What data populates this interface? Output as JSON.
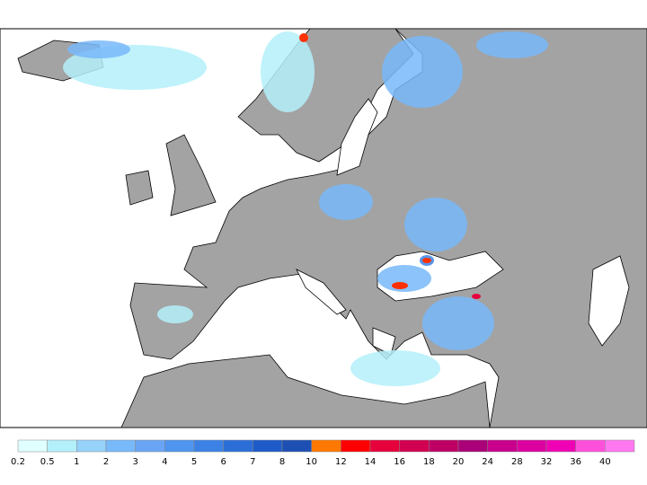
{
  "legend": {
    "levels": [
      0.2,
      0.5,
      1,
      2,
      3,
      4,
      5,
      6,
      7,
      8,
      10,
      12,
      14,
      16,
      18,
      20,
      24,
      28,
      32,
      36,
      40
    ],
    "colors": [
      "#e0ffff",
      "#b4f0fa",
      "#96d2fa",
      "#78b9fa",
      "#6aa5f5",
      "#5096f0",
      "#3c82e6",
      "#2c6ed8",
      "#1e5ac8",
      "#1e50b4",
      "#ff7800",
      "#ff0000",
      "#e6003c",
      "#d20050",
      "#be0064",
      "#aa0078",
      "#c8008c",
      "#dc00a0",
      "#f000b4",
      "#ff50dc",
      "#ff78f0"
    ]
  }
}
